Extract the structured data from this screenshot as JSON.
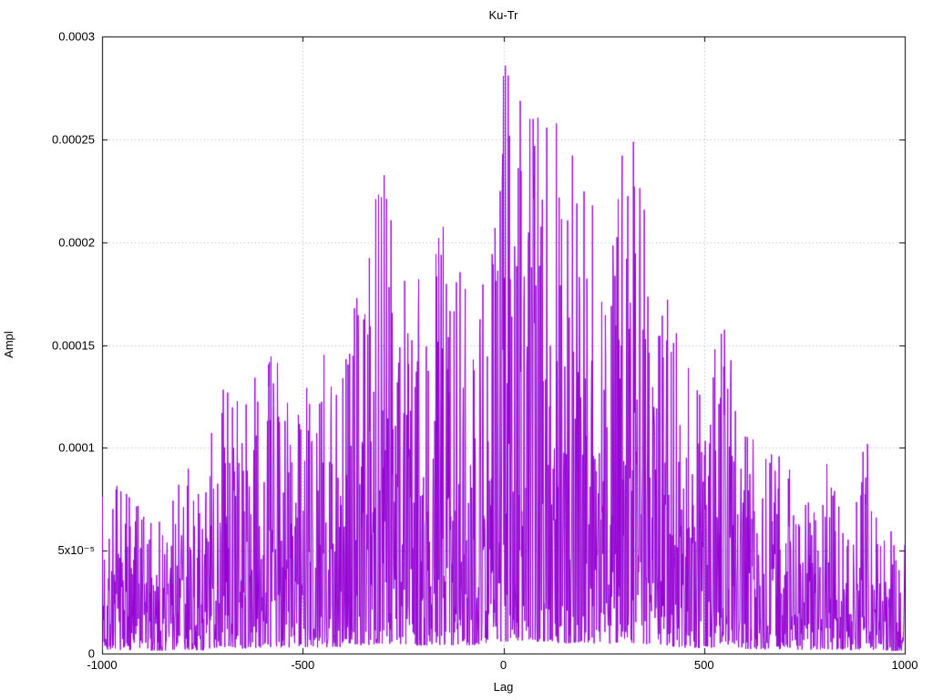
{
  "chart_data": {
    "type": "line",
    "title": "Ku-Tr",
    "xlabel": "Lag",
    "ylabel": "Ampl",
    "xlim": [
      -1000,
      1000
    ],
    "ylim": [
      0,
      0.0003
    ],
    "grid": "dotted",
    "legend": "none",
    "background": "#ffffff",
    "line_color": "#9400d3",
    "grid_color": "#b4b4b4",
    "border_color": "#000000",
    "x_ticks": [
      {
        "value": -1000,
        "label": "-1000"
      },
      {
        "value": -500,
        "label": "-500"
      },
      {
        "value": 0,
        "label": "0"
      },
      {
        "value": 500,
        "label": "500"
      },
      {
        "value": 1000,
        "label": "1000"
      }
    ],
    "y_ticks": [
      {
        "value": 0,
        "label": "0"
      },
      {
        "value": 5e-05,
        "label": "5x10⁻⁵"
      },
      {
        "value": 0.0001,
        "label": "0.0001"
      },
      {
        "value": 0.00015,
        "label": "0.00015"
      },
      {
        "value": 0.0002,
        "label": "0.0002"
      },
      {
        "value": 0.00025,
        "label": "0.00025"
      },
      {
        "value": 0.0003,
        "label": "0.0003"
      }
    ],
    "series": [
      {
        "name": "Ku-Tr",
        "x_start": -1000,
        "x_end": 1000,
        "x_step": 1,
        "note": "Dense noisy correlation amplitude; peak envelope (lag, max ampl) estimated from the plot; samples reconstructed stochastically under this envelope.",
        "envelope": [
          [
            -1000,
            8e-05
          ],
          [
            -950,
            9e-05
          ],
          [
            -900,
            7e-05
          ],
          [
            -850,
            6.5e-05
          ],
          [
            -800,
            0.0001
          ],
          [
            -750,
            7.5e-05
          ],
          [
            -700,
            0.00015
          ],
          [
            -650,
            0.00012
          ],
          [
            -600,
            0.000145
          ],
          [
            -550,
            0.00015
          ],
          [
            -500,
            0.00013
          ],
          [
            -450,
            0.00015
          ],
          [
            -400,
            0.000155
          ],
          [
            -350,
            0.00019
          ],
          [
            -300,
            0.00024
          ],
          [
            -250,
            0.000195
          ],
          [
            -200,
            0.000185
          ],
          [
            -150,
            0.000215
          ],
          [
            -100,
            0.00019
          ],
          [
            -50,
            0.000215
          ],
          [
            0,
            0.000298
          ],
          [
            50,
            0.00028
          ],
          [
            100,
            0.000292
          ],
          [
            150,
            0.000245
          ],
          [
            200,
            0.000262
          ],
          [
            250,
            0.00022
          ],
          [
            300,
            0.000283
          ],
          [
            350,
            0.000227
          ],
          [
            400,
            0.000192
          ],
          [
            450,
            0.000145
          ],
          [
            500,
            0.000125
          ],
          [
            550,
            0.00017
          ],
          [
            600,
            0.000115
          ],
          [
            650,
            9.5e-05
          ],
          [
            700,
            0.000105
          ],
          [
            750,
            9e-05
          ],
          [
            800,
            0.000105
          ],
          [
            850,
            7e-05
          ],
          [
            900,
            0.00011
          ],
          [
            950,
            6.5e-05
          ],
          [
            1000,
            5.5e-05
          ]
        ],
        "noise": {
          "seed": 7,
          "shape_exponent": 2.2,
          "floor_fraction": 0.02,
          "spike_probability": 0.004,
          "spike_min_fraction": 0.9
        }
      }
    ]
  }
}
